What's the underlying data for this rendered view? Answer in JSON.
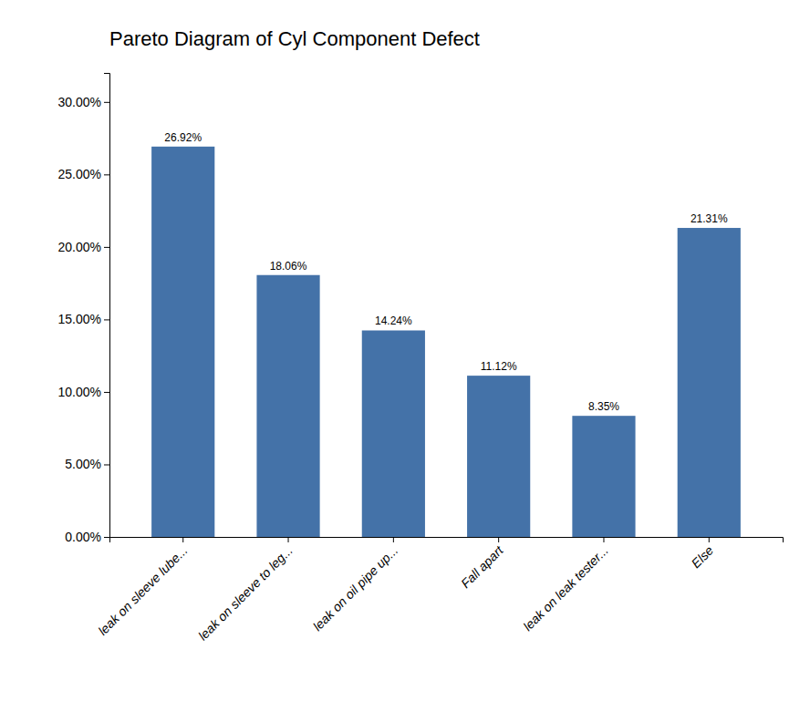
{
  "chart_data": {
    "type": "bar",
    "title": "Pareto Diagram of Cyl Component Defect",
    "categories": [
      "leak on sleeve lube...",
      "leak on sleeve to leg...",
      "leak on oil pipe up...",
      "Fall apart",
      "leak on leak tester...",
      "Else"
    ],
    "values": [
      26.92,
      18.06,
      14.24,
      11.12,
      8.35,
      21.31
    ],
    "value_labels": [
      "26.92%",
      "18.06%",
      "14.24%",
      "11.12%",
      "8.35%",
      "21.31%"
    ],
    "data_labels": true,
    "color": "#4472A8",
    "ylim": [
      0,
      32
    ],
    "yticks": [
      {
        "value": 0,
        "label": "0.00%"
      },
      {
        "value": 5,
        "label": "5.00%"
      },
      {
        "value": 10,
        "label": "10.00%"
      },
      {
        "value": 15,
        "label": "15.00%"
      },
      {
        "value": 20,
        "label": "20.00%"
      },
      {
        "value": 25,
        "label": "25.00%"
      },
      {
        "value": 30,
        "label": "30.00%"
      }
    ],
    "grid": false
  }
}
